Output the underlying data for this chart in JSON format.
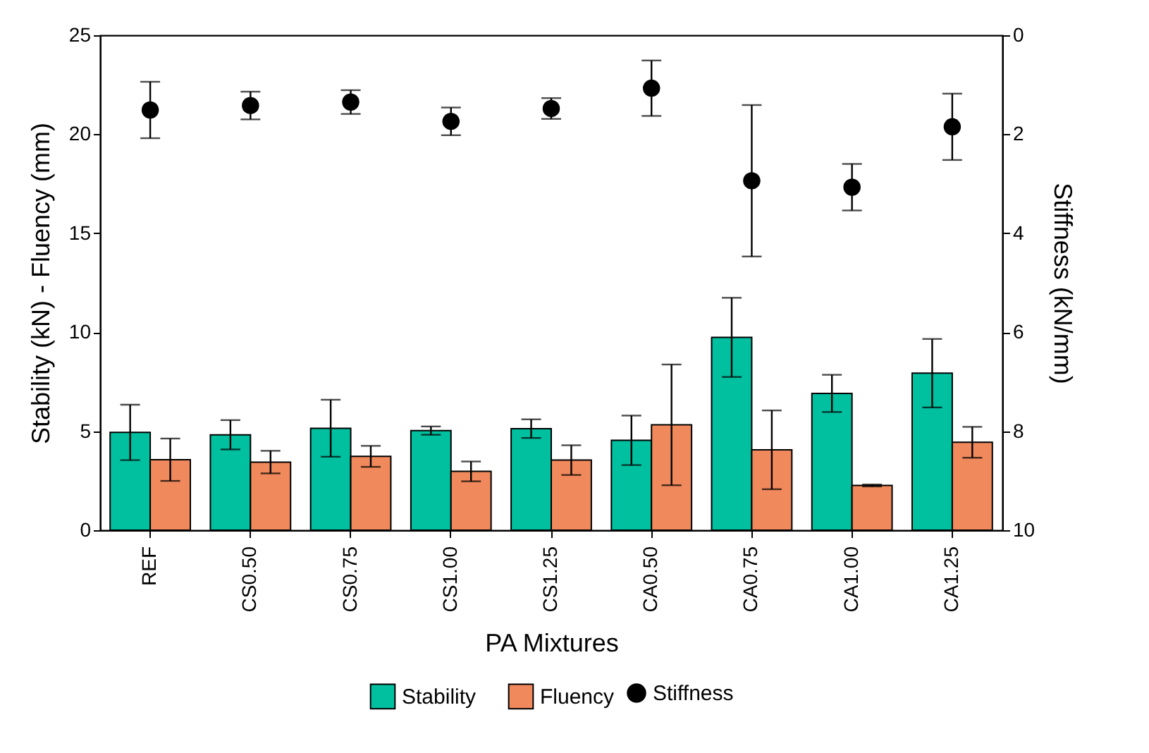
{
  "chart_data": {
    "type": "bar",
    "xlabel": "PA Mixtures",
    "ylabel": "Stability (kN) - Fluency (mm)",
    "y2label": "Stiffness (kN/mm)",
    "categories": [
      "REF",
      "CS0.50",
      "CS0.75",
      "CS1.00",
      "CS1.25",
      "CA0.50",
      "CA0.75",
      "CA1.00",
      "CA1.25"
    ],
    "series": [
      {
        "name": "Stability",
        "color": "#00c0a0",
        "values": [
          4.94,
          4.82,
          5.15,
          5.03,
          5.13,
          4.54,
          9.74,
          6.91,
          7.93
        ],
        "errors": [
          1.4,
          0.74,
          1.44,
          0.21,
          0.47,
          1.25,
          2.0,
          0.94,
          1.73
        ]
      },
      {
        "name": "Fluency",
        "color": "#f08a5d",
        "values": [
          3.56,
          3.44,
          3.73,
          2.97,
          3.54,
          5.32,
          4.06,
          2.26,
          4.44
        ],
        "errors": [
          1.07,
          0.57,
          0.53,
          0.5,
          0.75,
          3.05,
          1.99,
          0.05,
          0.78
        ]
      },
      {
        "name": "Stiffness",
        "type": "scatter",
        "axis": "y2",
        "color": "#000000",
        "values": [
          1.51,
          1.42,
          1.35,
          1.74,
          1.48,
          1.07,
          2.94,
          3.07,
          1.85
        ],
        "errors": [
          0.57,
          0.28,
          0.24,
          0.28,
          0.21,
          0.56,
          1.53,
          0.47,
          0.67
        ]
      }
    ],
    "ylim": [
      0,
      25
    ],
    "yticks": [
      0,
      5,
      10,
      15,
      20,
      25
    ],
    "y2lim": [
      10,
      0
    ],
    "y2ticks": [
      0,
      2,
      4,
      6,
      8,
      10
    ],
    "marker": "circle",
    "legend": "bottom",
    "grid": false
  }
}
